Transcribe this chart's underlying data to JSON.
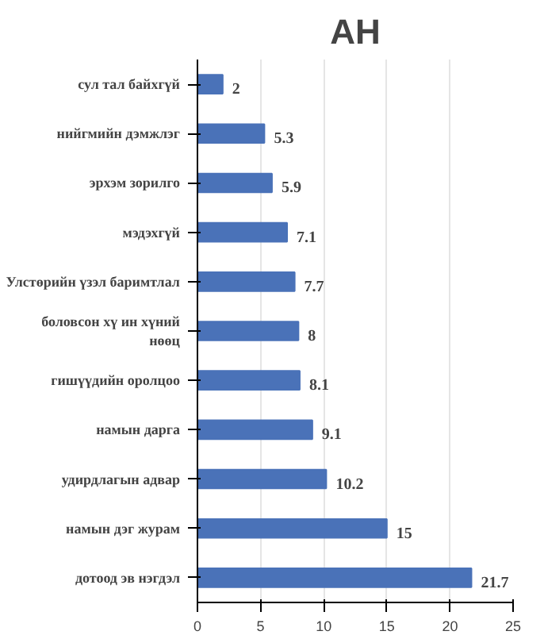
{
  "chart_data": {
    "type": "bar",
    "orientation": "horizontal",
    "title": "АН",
    "categories": [
      "сул тал байхгүй",
      "нийгмийн дэмжлэг",
      "эрхэм зорилго",
      "мэдэхгүй",
      "Улстөрийн үзэл баримтлал",
      "боловсон хү ин хүний\nнөөц",
      "гишүүдийн оролцоо",
      "намын дарга",
      "удирдлагын адвар",
      "намын дэг журам",
      "дотоод эв нэгдэл"
    ],
    "values": [
      2,
      5.3,
      5.9,
      7.1,
      7.7,
      8,
      8.1,
      9.1,
      10.2,
      15,
      21.7
    ],
    "color": "#4a72b8",
    "xlim": [
      0,
      25
    ],
    "xticks": [
      0,
      5,
      10,
      15,
      20,
      25
    ],
    "grid": "x",
    "data_labels": true
  }
}
